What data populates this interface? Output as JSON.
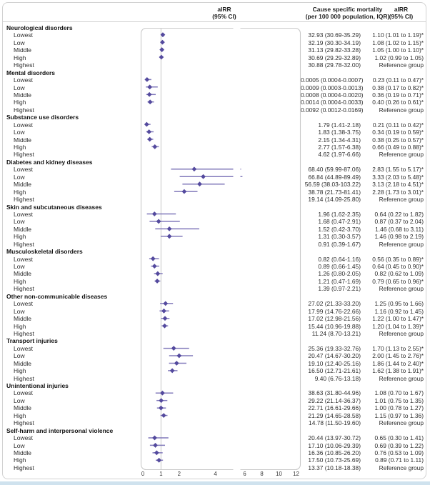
{
  "header": {
    "plot_col": {
      "line1": "aIRR",
      "line2": "(95% CI)"
    },
    "mortality_col": {
      "line1": "Cause specific mortality",
      "line2": "(per 100 000 population, IQR)"
    },
    "airr_col": {
      "line1": "aIRR",
      "line2": "(95% CI)"
    }
  },
  "chart_data": {
    "type": "scatter",
    "subtype": "forest-plot",
    "xlabel": "aIRR (95% CI)",
    "x_axis": {
      "ticks": [
        0,
        1,
        2,
        4,
        6,
        8,
        10,
        12
      ],
      "reference_line": 1,
      "scale_break_between": [
        5,
        6
      ]
    },
    "legend": "diamond = adjusted incidence rate ratio point estimate; horizontal line = 95% CI",
    "colors": {
      "marker": "#544a9e",
      "ci_line": "#8078ba",
      "frame": "#c9c9c9",
      "reference_line": "#c6c6c6"
    },
    "sections": [
      {
        "category": "Neurological disorders",
        "rows": [
          {
            "level": "Lowest",
            "mortality": "32.93 (30.69-35.29)",
            "airr": "1.10 (1.01 to 1.19)*",
            "est": 1.1,
            "lo": 1.01,
            "hi": 1.19
          },
          {
            "level": "Low",
            "mortality": "32.19 (30.30-34.19)",
            "airr": "1.08 (1.02 to 1.15)*",
            "est": 1.08,
            "lo": 1.02,
            "hi": 1.15
          },
          {
            "level": "Middle",
            "mortality": "31.13 (29.82-33.28)",
            "airr": "1.05 (1.00 to 1.10)*",
            "est": 1.05,
            "lo": 1.0,
            "hi": 1.1
          },
          {
            "level": "High",
            "mortality": "30.69 (29.29-32.89)",
            "airr": "1.02 (0.99 to 1.05)",
            "est": 1.02,
            "lo": 0.99,
            "hi": 1.05
          },
          {
            "level": "Highest",
            "mortality": "30.88 (29.78-32.00)",
            "airr": "Reference group",
            "est": null,
            "lo": null,
            "hi": null
          }
        ]
      },
      {
        "category": "Mental disorders",
        "rows": [
          {
            "level": "Lowest",
            "mortality": "0.0005 (0.0004-0.0007)",
            "airr": "0.23 (0.11 to 0.47)*",
            "est": 0.23,
            "lo": 0.11,
            "hi": 0.47
          },
          {
            "level": "Low",
            "mortality": "0.0009 (0.0003-0.0013)",
            "airr": "0.38 (0.17 to 0.82)*",
            "est": 0.38,
            "lo": 0.17,
            "hi": 0.82
          },
          {
            "level": "Middle",
            "mortality": "0.0008 (0.0004-0.0020)",
            "airr": "0.36 (0.19 to 0.71)*",
            "est": 0.36,
            "lo": 0.19,
            "hi": 0.71
          },
          {
            "level": "High",
            "mortality": "0.0014 (0.0004-0.0033)",
            "airr": "0.40 (0.26 to 0.61)*",
            "est": 0.4,
            "lo": 0.26,
            "hi": 0.61
          },
          {
            "level": "Highest",
            "mortality": "0.0092 (0.0012-0.0169)",
            "airr": "Reference group",
            "est": null,
            "lo": null,
            "hi": null
          }
        ]
      },
      {
        "category": "Substance use disorders",
        "rows": [
          {
            "level": "Lowest",
            "mortality": "1.79 (1.41-2.18)",
            "airr": "0.21 (0.11 to 0.42)*",
            "est": 0.21,
            "lo": 0.11,
            "hi": 0.42
          },
          {
            "level": "Low",
            "mortality": "1.83 (1.38-3.75)",
            "airr": "0.34 (0.19 to 0.59)*",
            "est": 0.34,
            "lo": 0.19,
            "hi": 0.59
          },
          {
            "level": "Middle",
            "mortality": "2.15 (1.34-4.31)",
            "airr": "0.38 (0.25 to 0.57)*",
            "est": 0.38,
            "lo": 0.25,
            "hi": 0.57
          },
          {
            "level": "High",
            "mortality": "2.77 (1.57-6.38)",
            "airr": "0.66 (0.49 to 0.88)*",
            "est": 0.66,
            "lo": 0.49,
            "hi": 0.88
          },
          {
            "level": "Highest",
            "mortality": "4.62 (1.97-6.66)",
            "airr": "Reference group",
            "est": null,
            "lo": null,
            "hi": null
          }
        ]
      },
      {
        "category": "Diabetes and kidney diseases",
        "rows": [
          {
            "level": "Lowest",
            "mortality": "68.40 (59.99-87.06)",
            "airr": "2.83 (1.55 to 5.17)*",
            "est": 2.83,
            "lo": 1.55,
            "hi": 5.17
          },
          {
            "level": "Low",
            "mortality": "66.84 (44.89-89.49)",
            "airr": "3.33 (2.03 to 5.48)*",
            "est": 3.33,
            "lo": 2.03,
            "hi": 5.48
          },
          {
            "level": "Middle",
            "mortality": "56.59 (38.03-103.22)",
            "airr": "3.13 (2.18 to 4.51)*",
            "est": 3.13,
            "lo": 2.18,
            "hi": 4.51
          },
          {
            "level": "High",
            "mortality": "38.78 (21.73-81.41)",
            "airr": "2.28 (1.73 to 3.01)*",
            "est": 2.28,
            "lo": 1.73,
            "hi": 3.01
          },
          {
            "level": "Highest",
            "mortality": "19.14 (14.09-25.80)",
            "airr": "Reference group",
            "est": null,
            "lo": null,
            "hi": null
          }
        ]
      },
      {
        "category": "Skin and subcutaneous diseases",
        "rows": [
          {
            "level": "Lowest",
            "mortality": "1.96 (1.62-2.35)",
            "airr": "0.64 (0.22 to 1.82)",
            "est": 0.64,
            "lo": 0.22,
            "hi": 1.82
          },
          {
            "level": "Low",
            "mortality": "1.68 (0.47-2.91)",
            "airr": "0.87 (0.37 to 2.04)",
            "est": 0.87,
            "lo": 0.37,
            "hi": 2.04
          },
          {
            "level": "Middle",
            "mortality": "1.52 (0.42-3.70)",
            "airr": "1.46 (0.68 to 3.11)",
            "est": 1.46,
            "lo": 0.68,
            "hi": 3.11
          },
          {
            "level": "High",
            "mortality": "1.31 (0.30-3.57)",
            "airr": "1.46 (0.98 to 2.19)",
            "est": 1.46,
            "lo": 0.98,
            "hi": 2.19
          },
          {
            "level": "Highest",
            "mortality": "0.91 (0.39-1.67)",
            "airr": "Reference group",
            "est": null,
            "lo": null,
            "hi": null
          }
        ]
      },
      {
        "category": "Musculoskeletal disorders",
        "rows": [
          {
            "level": "Lowest",
            "mortality": "0.82 (0.64-1.16)",
            "airr": "0.56 (0.35 to 0.89)*",
            "est": 0.56,
            "lo": 0.35,
            "hi": 0.89
          },
          {
            "level": "Low",
            "mortality": "0.89 (0.66-1.45)",
            "airr": "0.64 (0.45 to 0.90)*",
            "est": 0.64,
            "lo": 0.45,
            "hi": 0.9
          },
          {
            "level": "Middle",
            "mortality": "1.26 (0.80-2.05)",
            "airr": "0.82 (0.62 to 1.09)",
            "est": 0.82,
            "lo": 0.62,
            "hi": 1.09
          },
          {
            "level": "High",
            "mortality": "1.21 (0.47-1.69)",
            "airr": "0.79 (0.65 to 0.96)*",
            "est": 0.79,
            "lo": 0.65,
            "hi": 0.96
          },
          {
            "level": "Highest",
            "mortality": "1.39 (0.97-2.21)",
            "airr": "Reference group",
            "est": null,
            "lo": null,
            "hi": null
          }
        ]
      },
      {
        "category": "Other non-communicable diseases",
        "rows": [
          {
            "level": "Lowest",
            "mortality": "27.02 (21.33-33.20)",
            "airr": "1.25 (0.95 to 1.66)",
            "est": 1.25,
            "lo": 0.95,
            "hi": 1.66
          },
          {
            "level": "Low",
            "mortality": "17.99 (14.76-22.66)",
            "airr": "1.16 (0.92 to 1.45)",
            "est": 1.16,
            "lo": 0.92,
            "hi": 1.45
          },
          {
            "level": "Middle",
            "mortality": "17.02 (12.98-21.56)",
            "airr": "1.22 (1.00 to 1.47)*",
            "est": 1.22,
            "lo": 1.0,
            "hi": 1.47
          },
          {
            "level": "High",
            "mortality": "15.44 (10.96-19.88)",
            "airr": "1.20 (1.04 to 1.39)*",
            "est": 1.2,
            "lo": 1.04,
            "hi": 1.39
          },
          {
            "level": "Highest",
            "mortality": "11.24 (8.70-13.21)",
            "airr": "Reference group",
            "est": null,
            "lo": null,
            "hi": null
          }
        ]
      },
      {
        "category": "Transport injuries",
        "rows": [
          {
            "level": "Lowest",
            "mortality": "25.36 (19.33-32.76)",
            "airr": "1.70 (1.13 to 2.55)*",
            "est": 1.7,
            "lo": 1.13,
            "hi": 2.55
          },
          {
            "level": "Low",
            "mortality": "20.47 (14.67-30.20)",
            "airr": "2.00 (1.45 to 2.76)*",
            "est": 2.0,
            "lo": 1.45,
            "hi": 2.76
          },
          {
            "level": "Middle",
            "mortality": "19.10 (12.40-25.16)",
            "airr": "1.86 (1.44 to 2.40)*",
            "est": 1.86,
            "lo": 1.44,
            "hi": 2.4
          },
          {
            "level": "High",
            "mortality": "16.50 (12.71-21.61)",
            "airr": "1.62 (1.38 to 1.91)*",
            "est": 1.62,
            "lo": 1.38,
            "hi": 1.91
          },
          {
            "level": "Highest",
            "mortality": "9.40 (6.76-13.18)",
            "airr": "Reference group",
            "est": null,
            "lo": null,
            "hi": null
          }
        ]
      },
      {
        "category": "Unintentional injuries",
        "rows": [
          {
            "level": "Lowest",
            "mortality": "38.63 (31.80-44.96)",
            "airr": "1.08 (0.70 to 1.67)",
            "est": 1.08,
            "lo": 0.7,
            "hi": 1.67
          },
          {
            "level": "Low",
            "mortality": "29.22 (21.14-36.37)",
            "airr": "1.01 (0.75 to 1.35)",
            "est": 1.01,
            "lo": 0.75,
            "hi": 1.35
          },
          {
            "level": "Middle",
            "mortality": "22.71 (16.61-29.66)",
            "airr": "1.00 (0.78 to 1.27)",
            "est": 1.0,
            "lo": 0.78,
            "hi": 1.27
          },
          {
            "level": "High",
            "mortality": "21.29 (14.65-28.58)",
            "airr": "1.15 (0.97 to 1.36)",
            "est": 1.15,
            "lo": 0.97,
            "hi": 1.36
          },
          {
            "level": "Highest",
            "mortality": "14.78 (11.50-19.60)",
            "airr": "Reference group",
            "est": null,
            "lo": null,
            "hi": null
          }
        ]
      },
      {
        "category": "Self-harm and interpersonal violence",
        "rows": [
          {
            "level": "Lowest",
            "mortality": "20.44 (13.97-30.72)",
            "airr": "0.65 (0.30 to 1.41)",
            "est": 0.65,
            "lo": 0.3,
            "hi": 1.41
          },
          {
            "level": "Low",
            "mortality": "17.10 (10.06-29.39)",
            "airr": "0.69 (0.39 to 1.22)",
            "est": 0.69,
            "lo": 0.39,
            "hi": 1.22
          },
          {
            "level": "Middle",
            "mortality": "16.36 (10.85-26.20)",
            "airr": "0.76 (0.53 to 1.09)",
            "est": 0.76,
            "lo": 0.53,
            "hi": 1.09
          },
          {
            "level": "High",
            "mortality": "17.50 (10.73-25.69)",
            "airr": "0.89 (0.71 to 1.11)",
            "est": 0.89,
            "lo": 0.71,
            "hi": 1.11
          },
          {
            "level": "Highest",
            "mortality": "13.37 (10.18-18.38)",
            "airr": "Reference group",
            "est": null,
            "lo": null,
            "hi": null
          }
        ]
      }
    ]
  }
}
